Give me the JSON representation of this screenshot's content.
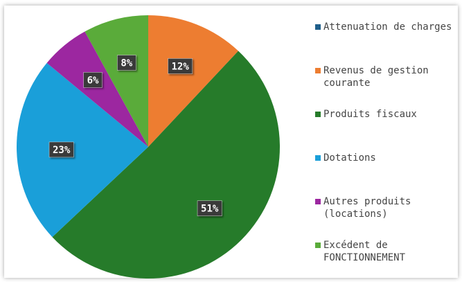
{
  "chart_data": {
    "type": "pie",
    "categories": [
      "Attenuation de charges",
      "Revenus de gestion courante",
      "Produits fiscaux",
      "Dotations",
      "Autres produits (locations)",
      "Excédent de FONCTIONNEMENT"
    ],
    "values": [
      0,
      12,
      51,
      23,
      6,
      8
    ],
    "value_labels": [
      null,
      "12%",
      "51%",
      "23%",
      "6%",
      "8%"
    ],
    "colors": [
      "#1f5f8b",
      "#ed7d31",
      "#267b2a",
      "#1a9fd9",
      "#9c27a0",
      "#5aab3a"
    ],
    "legend": "right"
  }
}
